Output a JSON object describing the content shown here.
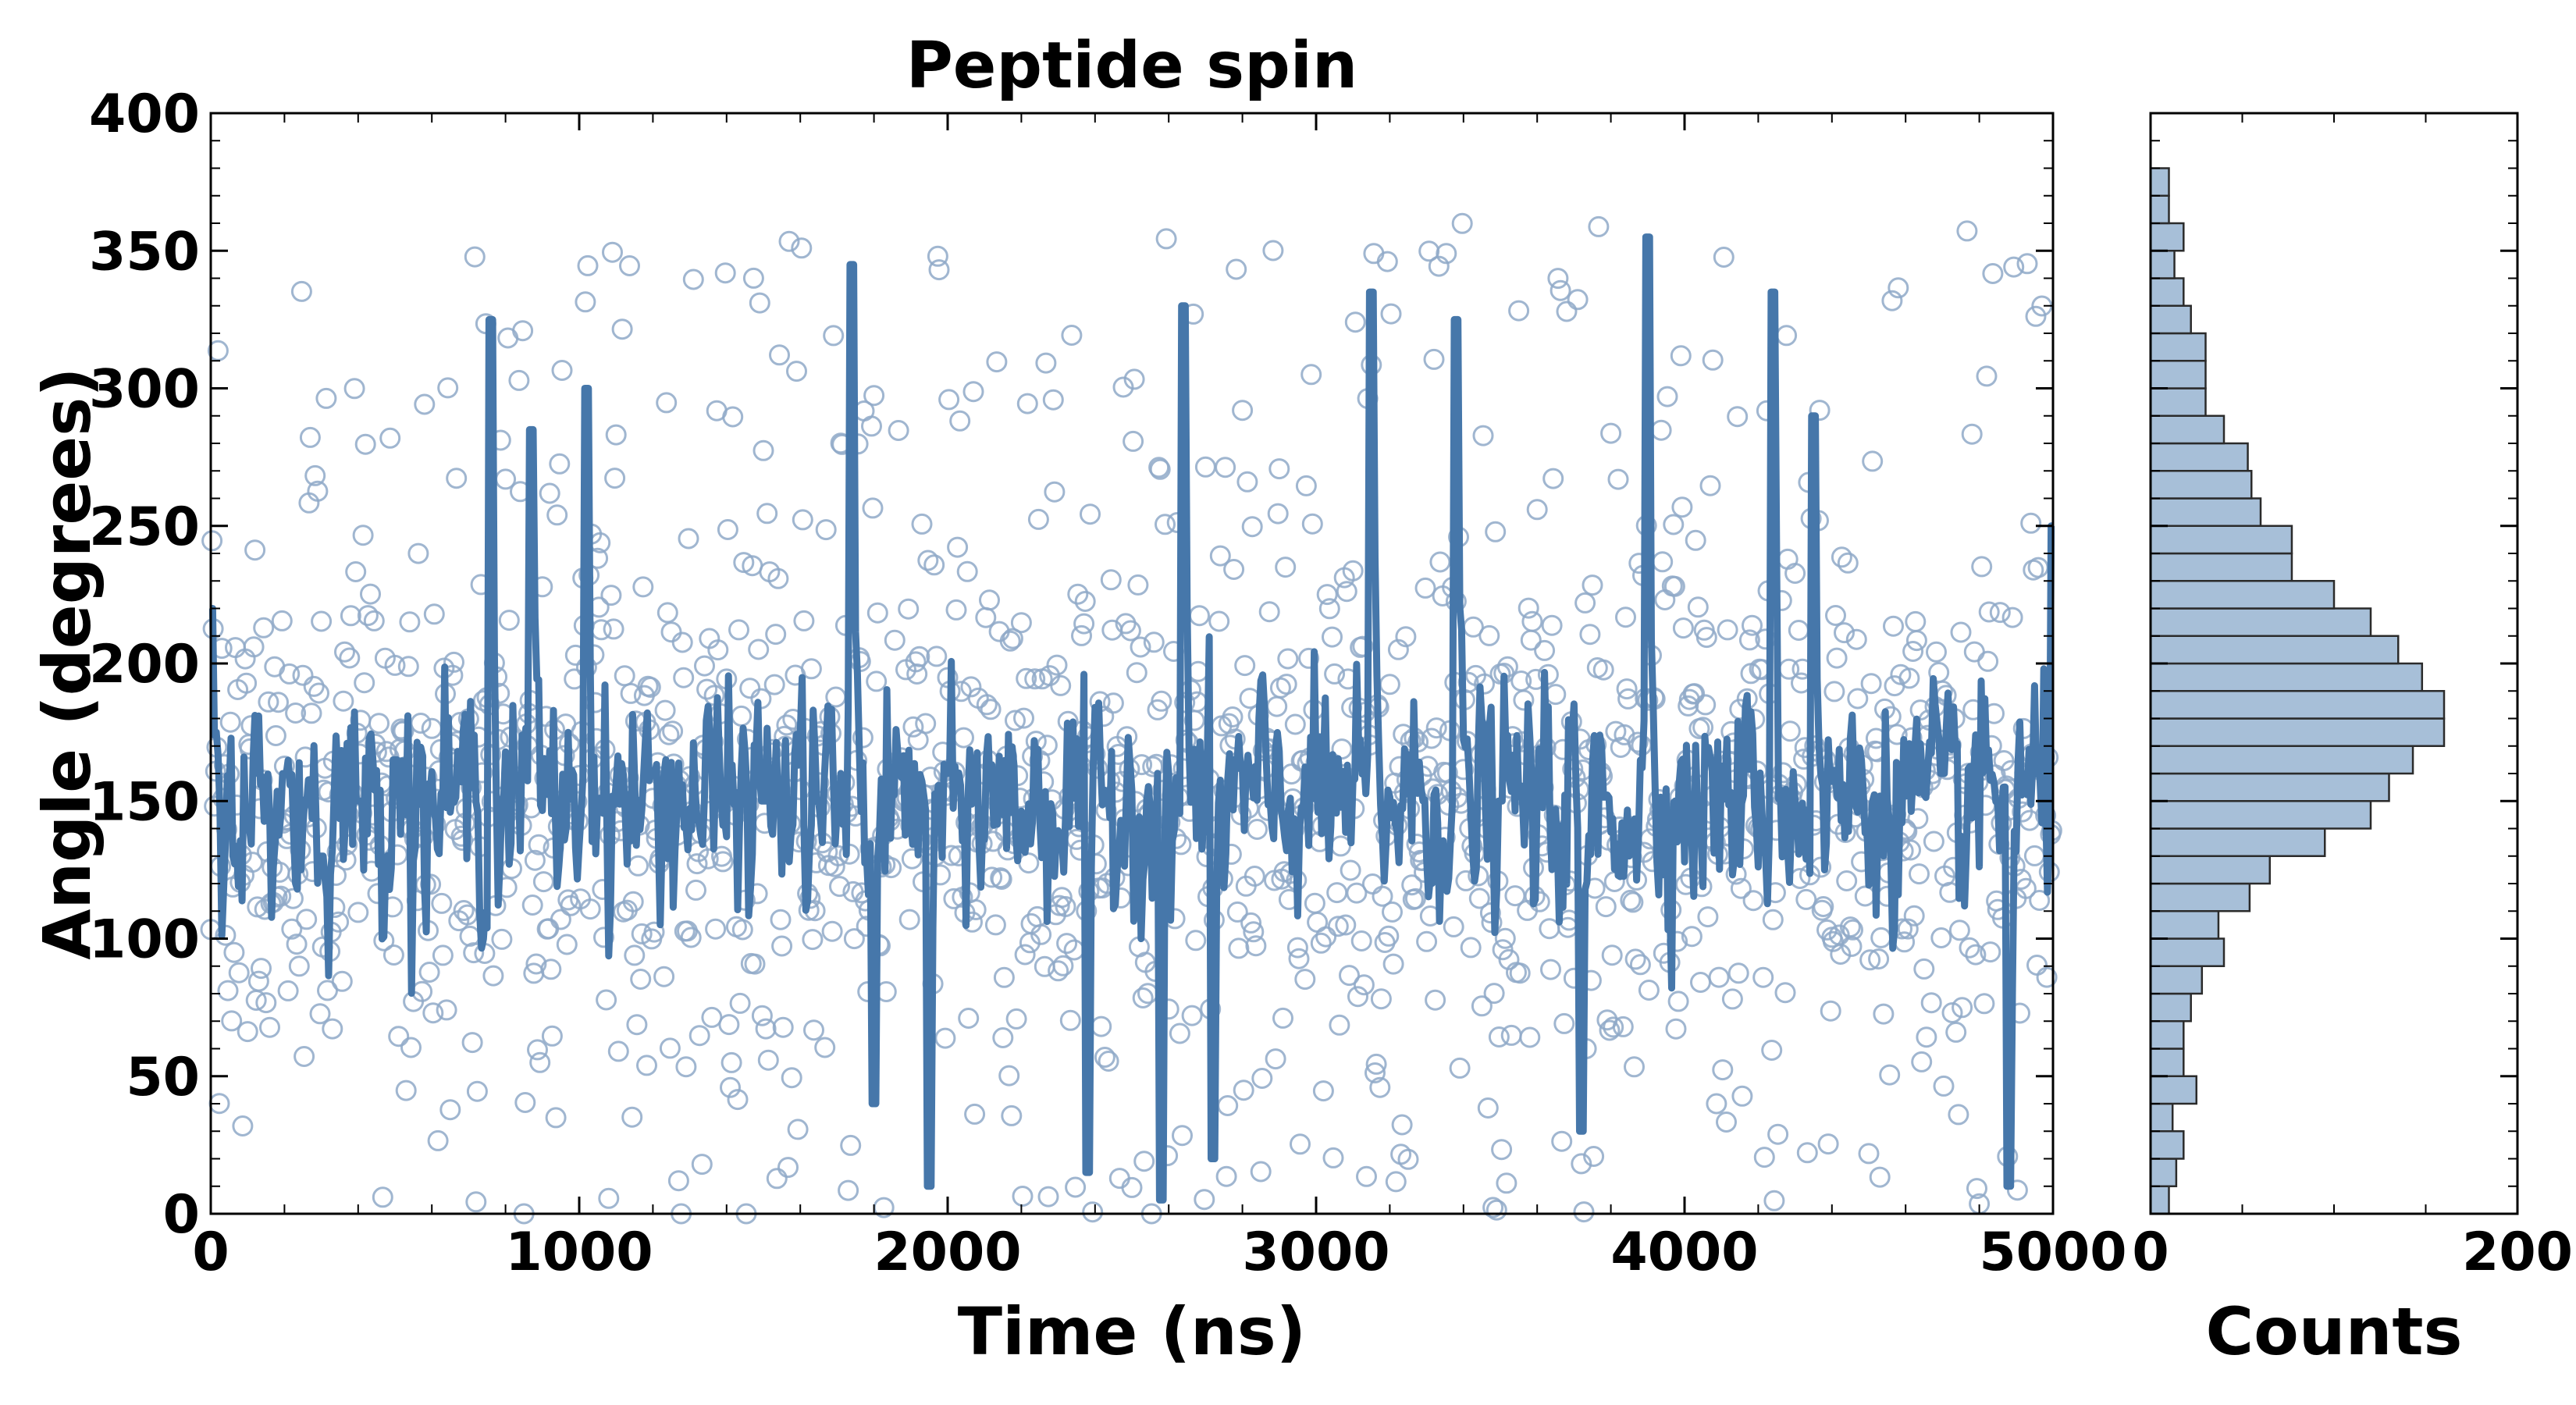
{
  "chart_data": [
    {
      "type": "scatter",
      "title": "Peptide spin",
      "xlabel": "Time (ns)",
      "ylabel": "Angle (degrees)",
      "xlim": [
        0,
        5000
      ],
      "ylim": [
        0,
        400
      ],
      "xticks": [
        0,
        1000,
        2000,
        3000,
        4000,
        5000
      ],
      "yticks": [
        0,
        50,
        100,
        150,
        200,
        250,
        300,
        350,
        400
      ],
      "grid": false,
      "legend": "none",
      "layers": [
        {
          "kind": "scatter",
          "marker": "open circle",
          "color": "#8FA9C8",
          "note_points": "about 1500 points spread over 0-360 degrees, concentrated near 150"
        },
        {
          "kind": "line",
          "color": "#4677AA",
          "description": "moving-average trace fluctuating mostly between 100 and 200 degrees with frequent spikes up to about 350 and down to about 0"
        }
      ],
      "line_anchor_points": [
        {
          "x": 0,
          "y": 220
        },
        {
          "x": 100,
          "y": 140
        },
        {
          "x": 200,
          "y": 160
        },
        {
          "x": 300,
          "y": 130
        },
        {
          "x": 400,
          "y": 150
        },
        {
          "x": 500,
          "y": 165
        },
        {
          "x": 760,
          "y": 325
        },
        {
          "x": 870,
          "y": 285
        },
        {
          "x": 1020,
          "y": 300
        },
        {
          "x": 1200,
          "y": 160
        },
        {
          "x": 1500,
          "y": 150
        },
        {
          "x": 1740,
          "y": 345
        },
        {
          "x": 1800,
          "y": 40
        },
        {
          "x": 1950,
          "y": 10
        },
        {
          "x": 2000,
          "y": 160
        },
        {
          "x": 2380,
          "y": 15
        },
        {
          "x": 2580,
          "y": 5
        },
        {
          "x": 2640,
          "y": 330
        },
        {
          "x": 2720,
          "y": 20
        },
        {
          "x": 3150,
          "y": 335
        },
        {
          "x": 3380,
          "y": 325
        },
        {
          "x": 3500,
          "y": 150
        },
        {
          "x": 3720,
          "y": 30
        },
        {
          "x": 3900,
          "y": 355
        },
        {
          "x": 4240,
          "y": 335
        },
        {
          "x": 4350,
          "y": 290
        },
        {
          "x": 4700,
          "y": 160
        },
        {
          "x": 4880,
          "y": 10
        },
        {
          "x": 5000,
          "y": 250
        }
      ]
    },
    {
      "type": "bar",
      "orientation": "horizontal",
      "xlabel": "Counts",
      "ylabel": "",
      "xlim": [
        0,
        200
      ],
      "ylim": [
        0,
        400
      ],
      "xticks": [
        0,
        200
      ],
      "bin_width": 10,
      "bin_edges_start": 0,
      "color": "#A7BFD8",
      "edgecolor": "#2b2b2b",
      "counts": [
        10,
        14,
        18,
        12,
        25,
        18,
        18,
        22,
        28,
        40,
        37,
        54,
        65,
        95,
        120,
        130,
        143,
        160,
        160,
        148,
        135,
        120,
        100,
        77,
        77,
        60,
        55,
        53,
        40,
        30,
        30,
        30,
        22,
        18,
        13,
        18,
        10,
        10,
        0,
        0
      ]
    }
  ]
}
